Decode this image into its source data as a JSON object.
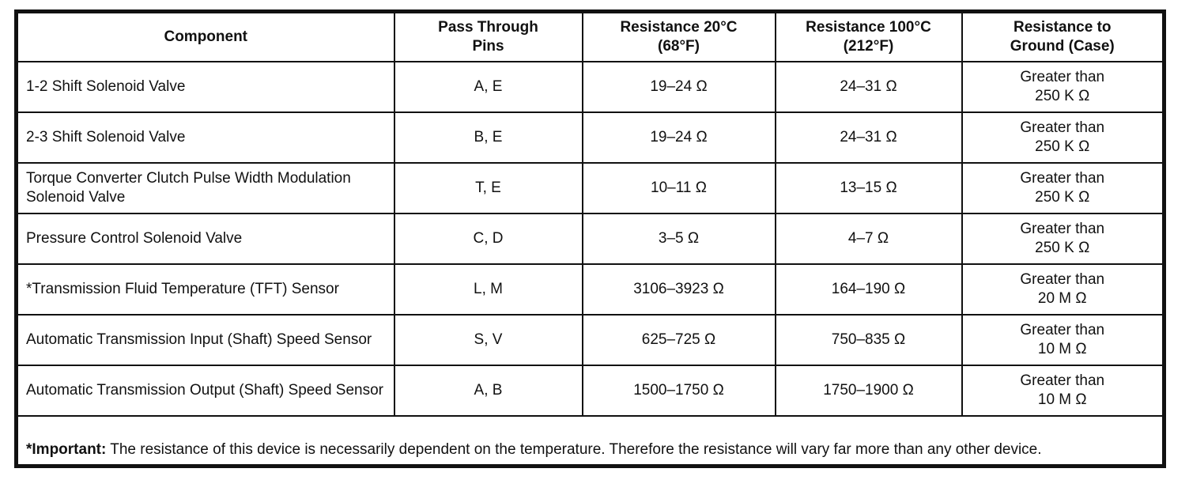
{
  "table": {
    "columns": [
      "Component",
      "Pass Through\nPins",
      "Resistance 20°C\n(68°F)",
      "Resistance 100°C\n(212°F)",
      "Resistance to\nGround (Case)"
    ],
    "rows": [
      {
        "cells": [
          "1-2 Shift Solenoid Valve",
          "A, E",
          "19–24 Ω",
          "24–31 Ω",
          "Greater than\n250 K Ω"
        ]
      },
      {
        "cells": [
          "2-3 Shift Solenoid Valve",
          "B, E",
          "19–24 Ω",
          "24–31 Ω",
          "Greater than\n250 K Ω"
        ]
      },
      {
        "cells": [
          "Torque Converter Clutch Pulse Width Modulation Solenoid Valve",
          "T, E",
          "10–11 Ω",
          "13–15 Ω",
          "Greater than\n250 K Ω"
        ]
      },
      {
        "cells": [
          "Pressure Control Solenoid Valve",
          "C, D",
          "3–5 Ω",
          "4–7 Ω",
          "Greater than\n250 K Ω"
        ]
      },
      {
        "cells": [
          "*Transmission Fluid Temperature (TFT) Sensor",
          "L, M",
          "3106–3923 Ω",
          "164–190 Ω",
          "Greater than\n20 M Ω"
        ]
      },
      {
        "cells": [
          "Automatic Transmission Input (Shaft) Speed Sensor",
          "S, V",
          "625–725 Ω",
          "750–835 Ω",
          "Greater than\n10 M Ω"
        ]
      },
      {
        "cells": [
          "Automatic Transmission Output (Shaft) Speed Sensor",
          "A, B",
          "1500–1750 Ω",
          "1750–1900 Ω",
          "Greater than\n10 M Ω"
        ]
      }
    ]
  },
  "note": {
    "label": "*Important:",
    "text": " The resistance of this device is necessarily dependent on the temperature. Therefore the resistance will vary far more than any other device."
  }
}
